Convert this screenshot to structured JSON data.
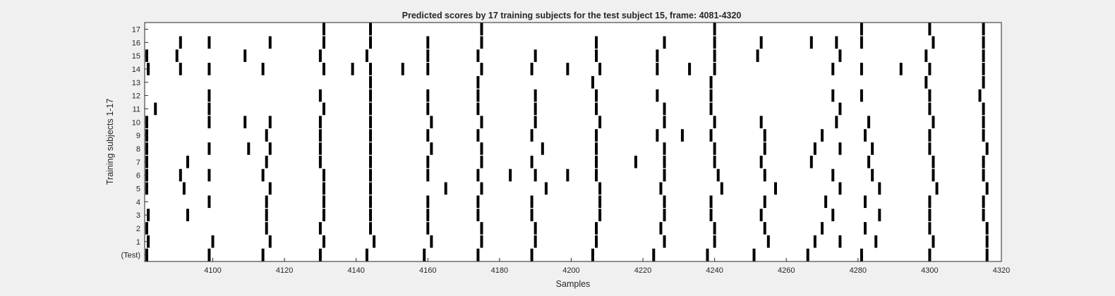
{
  "chart_data": {
    "type": "event-raster",
    "title": "Predicted scores by 17 training subjects for the test subject 15, frame: 4081-4320",
    "xlabel": "Samples",
    "ylabel": "Training subjects 1-17",
    "xlim": [
      4081,
      4320
    ],
    "x_ticks": [
      4100,
      4120,
      4140,
      4160,
      4180,
      4200,
      4220,
      4240,
      4260,
      4280,
      4300,
      4320
    ],
    "categories": [
      "(Test)",
      "1",
      "2",
      "3",
      "4",
      "5",
      "6",
      "7",
      "8",
      "9",
      "10",
      "11",
      "12",
      "13",
      "14",
      "15",
      "16",
      "17"
    ],
    "grid": false,
    "colors": {
      "marker": "#000000",
      "plot_bg": "#ffffff",
      "figure_bg": "#f0f0f0",
      "axis": "#262626"
    },
    "series": [
      {
        "name": "(Test)",
        "events": [
          4081,
          4099,
          4114,
          4130,
          4143,
          4159,
          4174,
          4189,
          4206,
          4223,
          4238,
          4251,
          4266,
          4281,
          4300,
          4316
        ]
      },
      {
        "name": "1",
        "events": [
          4082,
          4100,
          4116,
          4131,
          4145,
          4161,
          4175,
          4190,
          4207,
          4226,
          4240,
          4255,
          4268,
          4275,
          4285,
          4301,
          4316
        ]
      },
      {
        "name": "2",
        "events": [
          4081,
          4115,
          4130,
          4144,
          4160,
          4175,
          4190,
          4207,
          4225,
          4240,
          4254,
          4270,
          4282,
          4300,
          4316
        ]
      },
      {
        "name": "3",
        "events": [
          4082,
          4093,
          4115,
          4131,
          4144,
          4160,
          4174,
          4189,
          4208,
          4226,
          4239,
          4253,
          4273,
          4286,
          4300,
          4315
        ]
      },
      {
        "name": "4",
        "events": [
          4099,
          4115,
          4131,
          4144,
          4160,
          4174,
          4189,
          4208,
          4226,
          4239,
          4254,
          4271,
          4282,
          4300,
          4315
        ]
      },
      {
        "name": "5",
        "events": [
          4081,
          4092,
          4116,
          4131,
          4144,
          4165,
          4175,
          4193,
          4208,
          4225,
          4242,
          4257,
          4275,
          4286,
          4302,
          4316
        ]
      },
      {
        "name": "6",
        "events": [
          4081,
          4091,
          4099,
          4114,
          4131,
          4144,
          4160,
          4174,
          4183,
          4190,
          4199,
          4207,
          4226,
          4241,
          4254,
          4273,
          4284,
          4301,
          4315
        ]
      },
      {
        "name": "7",
        "events": [
          4081,
          4093,
          4115,
          4130,
          4144,
          4160,
          4175,
          4189,
          4207,
          4218,
          4226,
          4240,
          4253,
          4267,
          4283,
          4301,
          4315
        ]
      },
      {
        "name": "8",
        "events": [
          4081,
          4099,
          4110,
          4116,
          4130,
          4144,
          4161,
          4175,
          4192,
          4207,
          4226,
          4240,
          4254,
          4268,
          4275,
          4284,
          4300,
          4316
        ]
      },
      {
        "name": "9",
        "events": [
          4081,
          4115,
          4130,
          4144,
          4160,
          4174,
          4189,
          4207,
          4224,
          4231,
          4239,
          4254,
          4270,
          4282,
          4300,
          4315
        ]
      },
      {
        "name": "10",
        "events": [
          4081,
          4099,
          4109,
          4116,
          4130,
          4144,
          4161,
          4175,
          4190,
          4208,
          4226,
          4240,
          4253,
          4274,
          4283,
          4301,
          4315
        ]
      },
      {
        "name": "11",
        "events": [
          4084,
          4099,
          4131,
          4144,
          4160,
          4174,
          4190,
          4207,
          4226,
          4239,
          4275,
          4300,
          4315
        ]
      },
      {
        "name": "12",
        "events": [
          4099,
          4130,
          4144,
          4160,
          4174,
          4190,
          4207,
          4224,
          4239,
          4273,
          4281,
          4300,
          4314
        ]
      },
      {
        "name": "13",
        "events": [
          4144,
          4174,
          4206,
          4239,
          4299,
          4315
        ]
      },
      {
        "name": "14",
        "events": [
          4082,
          4091,
          4099,
          4114,
          4131,
          4139,
          4144,
          4153,
          4160,
          4175,
          4189,
          4199,
          4208,
          4224,
          4233,
          4240,
          4273,
          4281,
          4292,
          4300,
          4315
        ]
      },
      {
        "name": "15",
        "events": [
          4081,
          4090,
          4109,
          4130,
          4143,
          4160,
          4174,
          4190,
          4207,
          4224,
          4240,
          4252,
          4275,
          4299,
          4315
        ]
      },
      {
        "name": "16",
        "events": [
          4091,
          4099,
          4116,
          4131,
          4144,
          4160,
          4175,
          4207,
          4226,
          4240,
          4253,
          4267,
          4274,
          4281,
          4301,
          4315
        ]
      },
      {
        "name": "17",
        "events": [
          4131,
          4144,
          4175,
          4240,
          4281,
          4300,
          4315
        ]
      }
    ]
  }
}
